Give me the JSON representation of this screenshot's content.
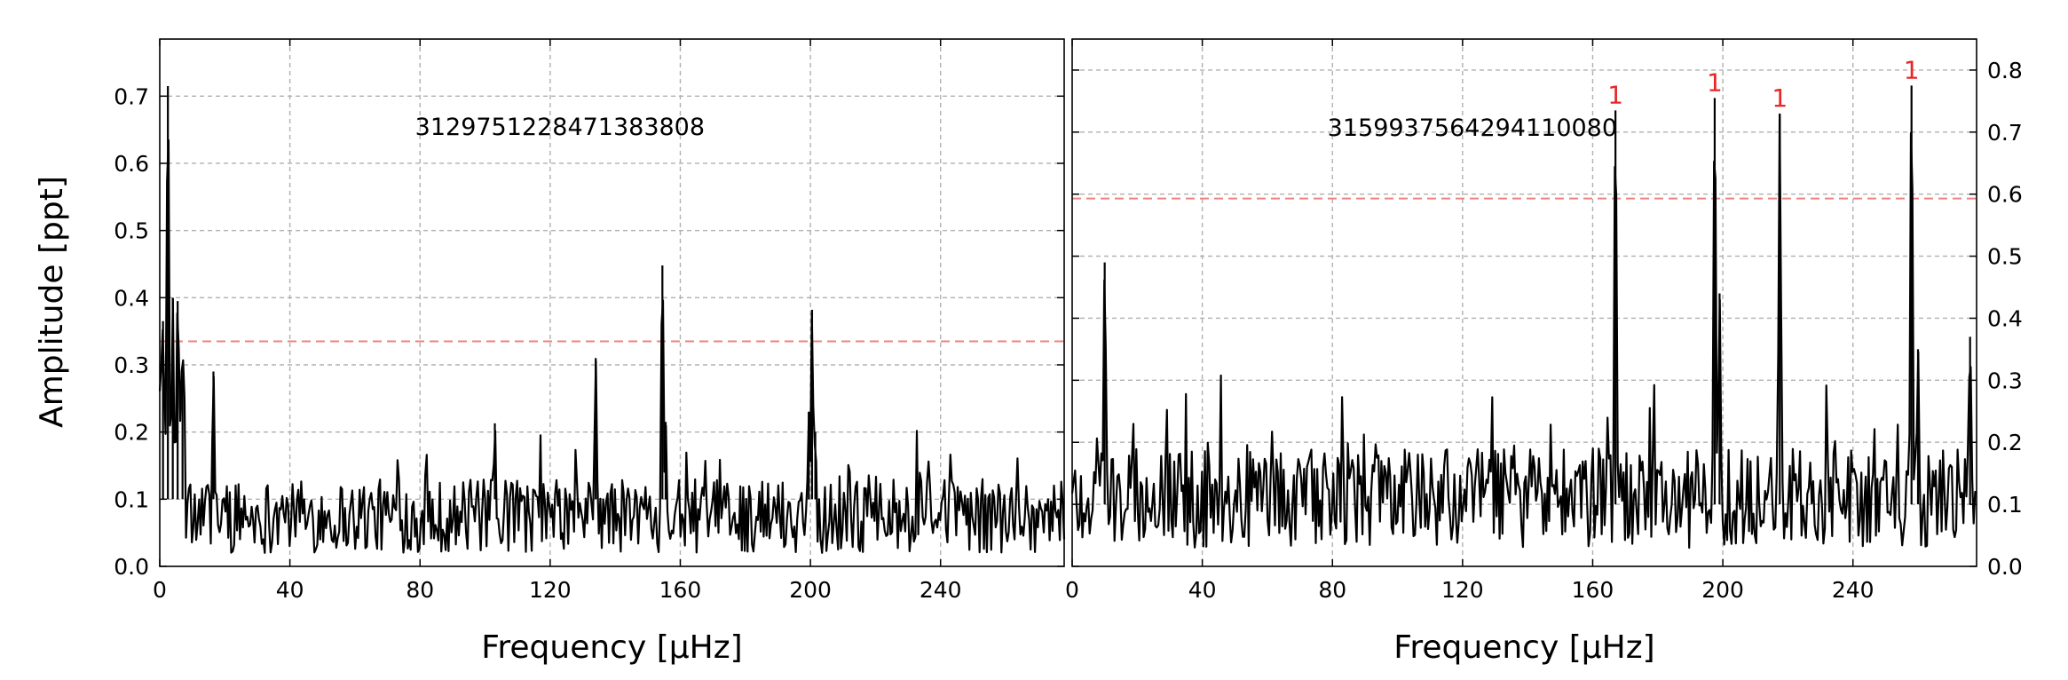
{
  "figure": {
    "ylabel": "Amplitude [ppt]"
  },
  "chart_data": [
    {
      "type": "line",
      "panel": "left",
      "annotation": "3129751228471383808",
      "xlabel": "Frequency [μHz]",
      "ylabel": "Amplitude [ppt]",
      "xlim": [
        0,
        278
      ],
      "ylim": [
        0,
        0.785
      ],
      "xticks": [
        0,
        40,
        80,
        120,
        160,
        200,
        240
      ],
      "yticks": [
        0.0,
        0.1,
        0.2,
        0.3,
        0.4,
        0.5,
        0.6,
        0.7
      ],
      "y_axis_side": "left",
      "grid": true,
      "threshold": 0.335,
      "threshold_color": "#f08080",
      "line_color": "#000000",
      "peaks": [
        {
          "x": 2.5,
          "y": 0.715
        },
        {
          "x": 4.0,
          "y": 0.4
        },
        {
          "x": 1.0,
          "y": 0.365
        },
        {
          "x": 5.5,
          "y": 0.395
        },
        {
          "x": 7.0,
          "y": 0.285
        },
        {
          "x": 16.5,
          "y": 0.29
        },
        {
          "x": 134,
          "y": 0.31
        },
        {
          "x": 154.5,
          "y": 0.448
        },
        {
          "x": 155.5,
          "y": 0.215
        },
        {
          "x": 200.5,
          "y": 0.382
        },
        {
          "x": 199.5,
          "y": 0.23
        },
        {
          "x": 201.5,
          "y": 0.2
        },
        {
          "x": 103,
          "y": 0.213
        }
      ],
      "labeled_peaks": []
    },
    {
      "type": "line",
      "panel": "right",
      "annotation": "3159937564294110080",
      "xlabel": "Frequency [μHz]",
      "ylabel": "",
      "xlim": [
        0,
        278
      ],
      "ylim": [
        0,
        0.85
      ],
      "xticks": [
        0,
        40,
        80,
        120,
        160,
        200,
        240
      ],
      "yticks": [
        0.0,
        0.1,
        0.2,
        0.3,
        0.4,
        0.5,
        0.6,
        0.7,
        0.8
      ],
      "y_axis_side": "right",
      "grid": true,
      "threshold": 0.593,
      "threshold_color": "#f08080",
      "line_color": "#000000",
      "peaks": [
        {
          "x": 10,
          "y": 0.49
        },
        {
          "x": 167,
          "y": 0.735
        },
        {
          "x": 197.5,
          "y": 0.755
        },
        {
          "x": 199,
          "y": 0.44
        },
        {
          "x": 217.5,
          "y": 0.73
        },
        {
          "x": 258,
          "y": 0.775
        },
        {
          "x": 260,
          "y": 0.35
        },
        {
          "x": 276,
          "y": 0.37
        }
      ],
      "labeled_peaks": [
        {
          "x": 167,
          "y": 0.735,
          "label": "1"
        },
        {
          "x": 197.5,
          "y": 0.755,
          "label": "1"
        },
        {
          "x": 217.5,
          "y": 0.73,
          "label": "1"
        },
        {
          "x": 258,
          "y": 0.775,
          "label": "1"
        }
      ],
      "label_color": "#e8262a"
    }
  ]
}
